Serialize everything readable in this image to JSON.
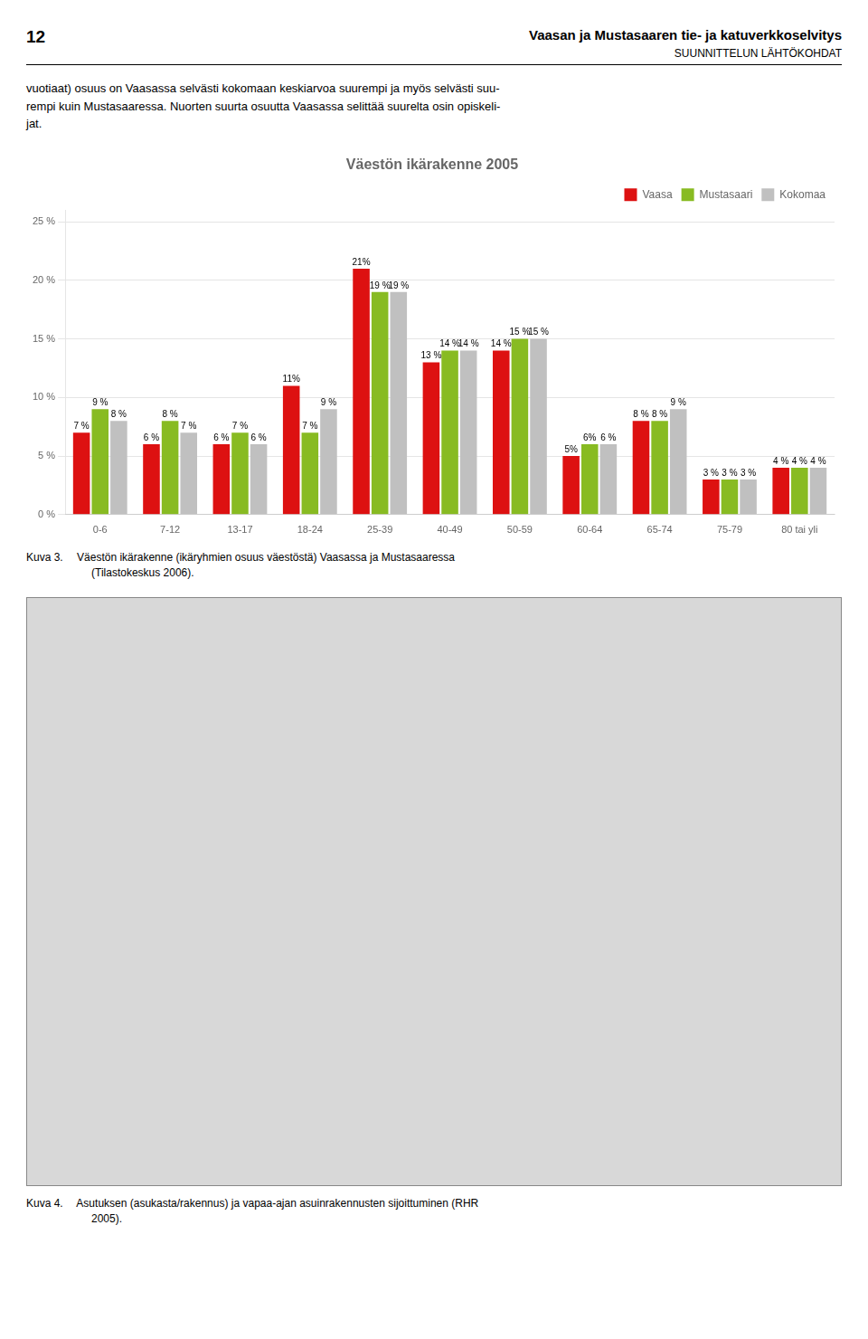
{
  "page_number": "12",
  "header": "Vaasan ja Mustasaaren tie- ja katuverkkoselvitys",
  "header_subtitle": "SUUNNITTELUN LÄHTÖKOHDAT",
  "body_text": "vuotiaat) osuus on Vaasassa selvästi kokomaan keskiarvoa suurempi ja myös selvästi suu-\nrempi kuin Mustasaaressa. Nuorten suurta osuutta Vaasassa selittää suurelta osin opiskeli-\njat.",
  "chart_data": {
    "type": "bar",
    "title": "Väestön ikärakenne 2005",
    "categories": [
      "0-6",
      "7-12",
      "13-17",
      "18-24",
      "25-39",
      "40-49",
      "50-59",
      "60-64",
      "65-74",
      "75-79",
      "80 tai yli"
    ],
    "series": [
      {
        "name": "Vaasa",
        "color": "#dd1111",
        "values": [
          0.07,
          0.06,
          0.06,
          0.11,
          0.21,
          0.13,
          0.14,
          0.05,
          0.08,
          0.03,
          0.04
        ],
        "value_labels": [
          "7 %",
          "6 %",
          "6 %",
          "11%",
          "21%",
          "13 %",
          "14 %",
          "5%",
          "8 %",
          "3 %",
          "4 %"
        ]
      },
      {
        "name": "Mustasaari",
        "color": "#88bb22",
        "values": [
          0.09,
          0.08,
          0.07,
          0.07,
          0.19,
          0.14,
          0.15,
          0.06,
          0.08,
          0.03,
          0.04
        ],
        "value_labels": [
          "9 %",
          "8 %",
          "7 %",
          "7 %",
          "19 %",
          "14 %",
          "15 %",
          "6%",
          "8 %",
          "3 %",
          "4 %"
        ]
      },
      {
        "name": "Kokomaa",
        "color": "#c0c0c0",
        "values": [
          0.08,
          0.07,
          0.06,
          0.09,
          0.19,
          0.14,
          0.15,
          0.06,
          0.09,
          0.03,
          0.04
        ],
        "value_labels": [
          "8 %",
          "7 %",
          "6 %",
          "9 %",
          "19 %",
          "14 %",
          "15 %",
          "6 %",
          "9 %",
          "3 %",
          "4 %"
        ]
      }
    ],
    "ylim": [
      0,
      0.26
    ],
    "yticks": [
      {
        "value": 0,
        "label": "0 %"
      },
      {
        "value": 0.05,
        "label": "5 %"
      },
      {
        "value": 0.1,
        "label": "10 %"
      },
      {
        "value": 0.15,
        "label": "15 %"
      },
      {
        "value": 0.2,
        "label": "20 %"
      },
      {
        "value": 0.25,
        "label": "25 %"
      }
    ],
    "grid": true,
    "legend": "upper right",
    "data_labels": true
  },
  "captions": [
    "Kuva 3.  Väestön ikärakenne (ikäryhmien osuus väestöstä) Vaasassa ja Mustasaaressa\n      (Tilastokeskus 2006).",
    "Kuva 4.  Asutuksen (asukasta/rakennus) ja vapaa-ajan asuinrakennusten sijoittuminen (RHR\n      2005)."
  ]
}
